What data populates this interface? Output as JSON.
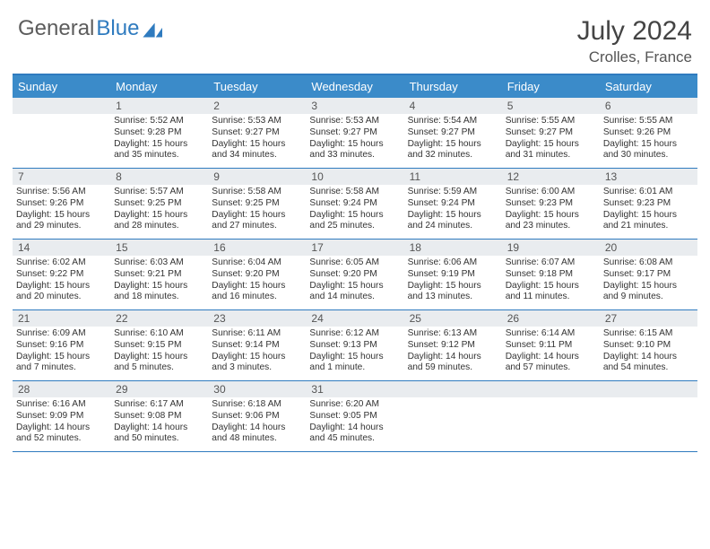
{
  "logo": {
    "word1": "General",
    "word2": "Blue"
  },
  "header": {
    "title": "July 2024",
    "location": "Crolles, France"
  },
  "colors": {
    "header_bar": "#3b8bc9",
    "border": "#2f7bbf",
    "daynum_bg": "#e9ecef",
    "text": "#333333"
  },
  "day_names": [
    "Sunday",
    "Monday",
    "Tuesday",
    "Wednesday",
    "Thursday",
    "Friday",
    "Saturday"
  ],
  "weeks": [
    [
      null,
      {
        "n": "1",
        "sr": "Sunrise: 5:52 AM",
        "ss": "Sunset: 9:28 PM",
        "dl": "Daylight: 15 hours and 35 minutes."
      },
      {
        "n": "2",
        "sr": "Sunrise: 5:53 AM",
        "ss": "Sunset: 9:27 PM",
        "dl": "Daylight: 15 hours and 34 minutes."
      },
      {
        "n": "3",
        "sr": "Sunrise: 5:53 AM",
        "ss": "Sunset: 9:27 PM",
        "dl": "Daylight: 15 hours and 33 minutes."
      },
      {
        "n": "4",
        "sr": "Sunrise: 5:54 AM",
        "ss": "Sunset: 9:27 PM",
        "dl": "Daylight: 15 hours and 32 minutes."
      },
      {
        "n": "5",
        "sr": "Sunrise: 5:55 AM",
        "ss": "Sunset: 9:27 PM",
        "dl": "Daylight: 15 hours and 31 minutes."
      },
      {
        "n": "6",
        "sr": "Sunrise: 5:55 AM",
        "ss": "Sunset: 9:26 PM",
        "dl": "Daylight: 15 hours and 30 minutes."
      }
    ],
    [
      {
        "n": "7",
        "sr": "Sunrise: 5:56 AM",
        "ss": "Sunset: 9:26 PM",
        "dl": "Daylight: 15 hours and 29 minutes."
      },
      {
        "n": "8",
        "sr": "Sunrise: 5:57 AM",
        "ss": "Sunset: 9:25 PM",
        "dl": "Daylight: 15 hours and 28 minutes."
      },
      {
        "n": "9",
        "sr": "Sunrise: 5:58 AM",
        "ss": "Sunset: 9:25 PM",
        "dl": "Daylight: 15 hours and 27 minutes."
      },
      {
        "n": "10",
        "sr": "Sunrise: 5:58 AM",
        "ss": "Sunset: 9:24 PM",
        "dl": "Daylight: 15 hours and 25 minutes."
      },
      {
        "n": "11",
        "sr": "Sunrise: 5:59 AM",
        "ss": "Sunset: 9:24 PM",
        "dl": "Daylight: 15 hours and 24 minutes."
      },
      {
        "n": "12",
        "sr": "Sunrise: 6:00 AM",
        "ss": "Sunset: 9:23 PM",
        "dl": "Daylight: 15 hours and 23 minutes."
      },
      {
        "n": "13",
        "sr": "Sunrise: 6:01 AM",
        "ss": "Sunset: 9:23 PM",
        "dl": "Daylight: 15 hours and 21 minutes."
      }
    ],
    [
      {
        "n": "14",
        "sr": "Sunrise: 6:02 AM",
        "ss": "Sunset: 9:22 PM",
        "dl": "Daylight: 15 hours and 20 minutes."
      },
      {
        "n": "15",
        "sr": "Sunrise: 6:03 AM",
        "ss": "Sunset: 9:21 PM",
        "dl": "Daylight: 15 hours and 18 minutes."
      },
      {
        "n": "16",
        "sr": "Sunrise: 6:04 AM",
        "ss": "Sunset: 9:20 PM",
        "dl": "Daylight: 15 hours and 16 minutes."
      },
      {
        "n": "17",
        "sr": "Sunrise: 6:05 AM",
        "ss": "Sunset: 9:20 PM",
        "dl": "Daylight: 15 hours and 14 minutes."
      },
      {
        "n": "18",
        "sr": "Sunrise: 6:06 AM",
        "ss": "Sunset: 9:19 PM",
        "dl": "Daylight: 15 hours and 13 minutes."
      },
      {
        "n": "19",
        "sr": "Sunrise: 6:07 AM",
        "ss": "Sunset: 9:18 PM",
        "dl": "Daylight: 15 hours and 11 minutes."
      },
      {
        "n": "20",
        "sr": "Sunrise: 6:08 AM",
        "ss": "Sunset: 9:17 PM",
        "dl": "Daylight: 15 hours and 9 minutes."
      }
    ],
    [
      {
        "n": "21",
        "sr": "Sunrise: 6:09 AM",
        "ss": "Sunset: 9:16 PM",
        "dl": "Daylight: 15 hours and 7 minutes."
      },
      {
        "n": "22",
        "sr": "Sunrise: 6:10 AM",
        "ss": "Sunset: 9:15 PM",
        "dl": "Daylight: 15 hours and 5 minutes."
      },
      {
        "n": "23",
        "sr": "Sunrise: 6:11 AM",
        "ss": "Sunset: 9:14 PM",
        "dl": "Daylight: 15 hours and 3 minutes."
      },
      {
        "n": "24",
        "sr": "Sunrise: 6:12 AM",
        "ss": "Sunset: 9:13 PM",
        "dl": "Daylight: 15 hours and 1 minute."
      },
      {
        "n": "25",
        "sr": "Sunrise: 6:13 AM",
        "ss": "Sunset: 9:12 PM",
        "dl": "Daylight: 14 hours and 59 minutes."
      },
      {
        "n": "26",
        "sr": "Sunrise: 6:14 AM",
        "ss": "Sunset: 9:11 PM",
        "dl": "Daylight: 14 hours and 57 minutes."
      },
      {
        "n": "27",
        "sr": "Sunrise: 6:15 AM",
        "ss": "Sunset: 9:10 PM",
        "dl": "Daylight: 14 hours and 54 minutes."
      }
    ],
    [
      {
        "n": "28",
        "sr": "Sunrise: 6:16 AM",
        "ss": "Sunset: 9:09 PM",
        "dl": "Daylight: 14 hours and 52 minutes."
      },
      {
        "n": "29",
        "sr": "Sunrise: 6:17 AM",
        "ss": "Sunset: 9:08 PM",
        "dl": "Daylight: 14 hours and 50 minutes."
      },
      {
        "n": "30",
        "sr": "Sunrise: 6:18 AM",
        "ss": "Sunset: 9:06 PM",
        "dl": "Daylight: 14 hours and 48 minutes."
      },
      {
        "n": "31",
        "sr": "Sunrise: 6:20 AM",
        "ss": "Sunset: 9:05 PM",
        "dl": "Daylight: 14 hours and 45 minutes."
      },
      null,
      null,
      null
    ]
  ]
}
